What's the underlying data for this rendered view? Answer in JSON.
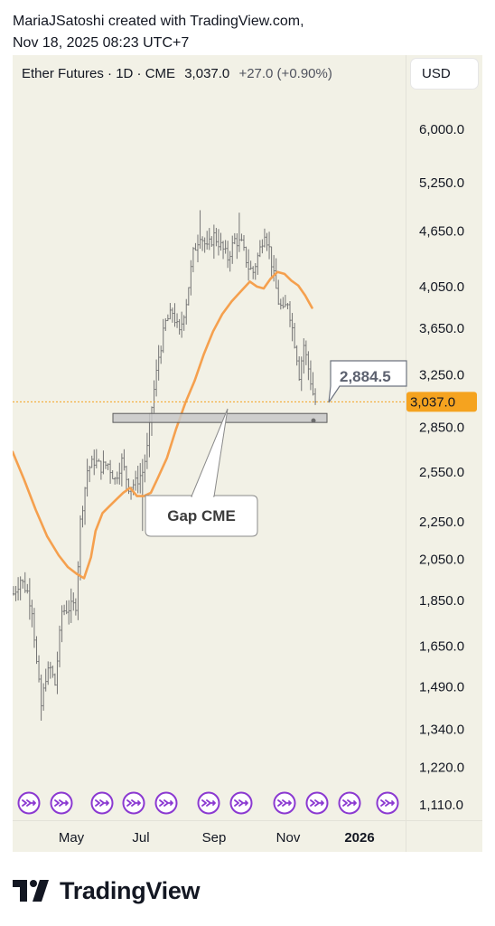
{
  "header": {
    "line1": "MariaJSatoshi created with TradingView.com,",
    "line2": "Nov 18, 2025 08:23 UTC+7"
  },
  "legend": {
    "symbol": "Ether Futures · 1D · CME",
    "last": "3,037.0",
    "change": "+27.0 (+0.90%)"
  },
  "currency": "USD",
  "colors": {
    "chart_bg": "#f2f1e6",
    "bars": "#757575",
    "ma_line": "#f5a04e",
    "price_tag": "#f5a31f",
    "gap_fill": "#c8c8c8",
    "icon_purple": "#8b39d1"
  },
  "chart_data": {
    "type": "ohlc",
    "title": "Ether Futures · 1D · CME",
    "scale": "log",
    "ylim": [
      1040,
      7200
    ],
    "xaxis": {
      "months": [
        "May",
        "Jul",
        "Sep",
        "Nov"
      ],
      "year_label": "2026"
    },
    "y_ticks": [
      {
        "value": 6000,
        "label": "6,000.0"
      },
      {
        "value": 5250,
        "label": "5,250.0"
      },
      {
        "value": 4650,
        "label": "4,650.0"
      },
      {
        "value": 4050,
        "label": "4,050.0"
      },
      {
        "value": 3650,
        "label": "3,650.0"
      },
      {
        "value": 3250,
        "label": "3,250.0"
      },
      {
        "value": 2850,
        "label": "2,850.0"
      },
      {
        "value": 2550,
        "label": "2,550.0"
      },
      {
        "value": 2250,
        "label": "2,250.0"
      },
      {
        "value": 2050,
        "label": "2,050.0"
      },
      {
        "value": 1850,
        "label": "1,850.0"
      },
      {
        "value": 1650,
        "label": "1,650.0"
      },
      {
        "value": 1490,
        "label": "1,490.0"
      },
      {
        "value": 1340,
        "label": "1,340.0"
      },
      {
        "value": 1220,
        "label": "1,220.0"
      },
      {
        "value": 1110,
        "label": "1,110.0"
      }
    ],
    "price_line": {
      "value": 3037.0,
      "label": "3,037.0"
    },
    "gap": {
      "low": 2884.5,
      "high": 2950,
      "label": "Gap CME",
      "level_label": "2,884.5"
    },
    "moving_average": [
      {
        "d": 0,
        "v": 2680
      },
      {
        "d": 5,
        "v": 2500
      },
      {
        "d": 10,
        "v": 2320
      },
      {
        "d": 15,
        "v": 2170
      },
      {
        "d": 20,
        "v": 2070
      },
      {
        "d": 24,
        "v": 2010
      },
      {
        "d": 28,
        "v": 1975
      },
      {
        "d": 31,
        "v": 1955
      },
      {
        "d": 34,
        "v": 2060
      },
      {
        "d": 36,
        "v": 2200
      },
      {
        "d": 39,
        "v": 2300
      },
      {
        "d": 42,
        "v": 2340
      },
      {
        "d": 45,
        "v": 2380
      },
      {
        "d": 48,
        "v": 2420
      },
      {
        "d": 51,
        "v": 2450
      },
      {
        "d": 54,
        "v": 2400
      },
      {
        "d": 57,
        "v": 2400
      },
      {
        "d": 60,
        "v": 2420
      },
      {
        "d": 63,
        "v": 2510
      },
      {
        "d": 67,
        "v": 2640
      },
      {
        "d": 71,
        "v": 2840
      },
      {
        "d": 75,
        "v": 3030
      },
      {
        "d": 79,
        "v": 3200
      },
      {
        "d": 83,
        "v": 3420
      },
      {
        "d": 87,
        "v": 3620
      },
      {
        "d": 91,
        "v": 3780
      },
      {
        "d": 95,
        "v": 3900
      },
      {
        "d": 99,
        "v": 4000
      },
      {
        "d": 103,
        "v": 4100
      },
      {
        "d": 106,
        "v": 4050
      },
      {
        "d": 109,
        "v": 4030
      },
      {
        "d": 112,
        "v": 4130
      },
      {
        "d": 115,
        "v": 4200
      },
      {
        "d": 118,
        "v": 4180
      },
      {
        "d": 121,
        "v": 4110
      },
      {
        "d": 124,
        "v": 4060
      },
      {
        "d": 127,
        "v": 3960
      },
      {
        "d": 130,
        "v": 3840
      }
    ],
    "ohlc_anchors": [
      {
        "d": 0,
        "v": 1880
      },
      {
        "d": 3,
        "v": 1950
      },
      {
        "d": 6,
        "v": 1890
      },
      {
        "d": 8,
        "v": 1810
      },
      {
        "d": 10,
        "v": 1580
      },
      {
        "d": 12,
        "v": 1420
      },
      {
        "d": 14,
        "v": 1530
      },
      {
        "d": 16,
        "v": 1560
      },
      {
        "d": 18,
        "v": 1500
      },
      {
        "d": 21,
        "v": 1800
      },
      {
        "d": 25,
        "v": 1820
      },
      {
        "d": 27,
        "v": 1830
      },
      {
        "d": 29,
        "v": 2250
      },
      {
        "d": 32,
        "v": 2560
      },
      {
        "d": 35,
        "v": 2620
      },
      {
        "d": 38,
        "v": 2580
      },
      {
        "d": 41,
        "v": 2600
      },
      {
        "d": 44,
        "v": 2500
      },
      {
        "d": 47,
        "v": 2620
      },
      {
        "d": 50,
        "v": 2460
      },
      {
        "d": 53,
        "v": 2480
      },
      {
        "d": 56,
        "v": 2550
      },
      {
        "d": 58,
        "v": 2700
      },
      {
        "d": 60,
        "v": 3000
      },
      {
        "d": 63,
        "v": 3400
      },
      {
        "d": 66,
        "v": 3700
      },
      {
        "d": 69,
        "v": 3800
      },
      {
        "d": 72,
        "v": 3600
      },
      {
        "d": 75,
        "v": 3900
      },
      {
        "d": 78,
        "v": 4400
      },
      {
        "d": 81,
        "v": 4620
      },
      {
        "d": 84,
        "v": 4450
      },
      {
        "d": 87,
        "v": 4600
      },
      {
        "d": 90,
        "v": 4480
      },
      {
        "d": 93,
        "v": 4350
      },
      {
        "d": 96,
        "v": 4550
      },
      {
        "d": 99,
        "v": 4500
      },
      {
        "d": 102,
        "v": 4250
      },
      {
        "d": 104,
        "v": 4200
      },
      {
        "d": 107,
        "v": 4450
      },
      {
        "d": 109,
        "v": 4650
      },
      {
        "d": 111,
        "v": 4450
      },
      {
        "d": 113,
        "v": 4150
      },
      {
        "d": 115,
        "v": 3900
      },
      {
        "d": 117,
        "v": 3800
      },
      {
        "d": 119,
        "v": 3900
      },
      {
        "d": 121,
        "v": 3650
      },
      {
        "d": 123,
        "v": 3400
      },
      {
        "d": 124,
        "v": 3250
      },
      {
        "d": 126,
        "v": 3500
      },
      {
        "d": 128,
        "v": 3300
      },
      {
        "d": 130,
        "v": 3100
      },
      {
        "d": 131,
        "v": 3037
      }
    ],
    "ohlc_extremes": [
      {
        "d": 12,
        "low": 1370
      },
      {
        "d": 56,
        "low": 2200
      },
      {
        "d": 81,
        "high": 4900
      },
      {
        "d": 98,
        "high": 4870
      }
    ],
    "event_icon_count": 11
  }
}
